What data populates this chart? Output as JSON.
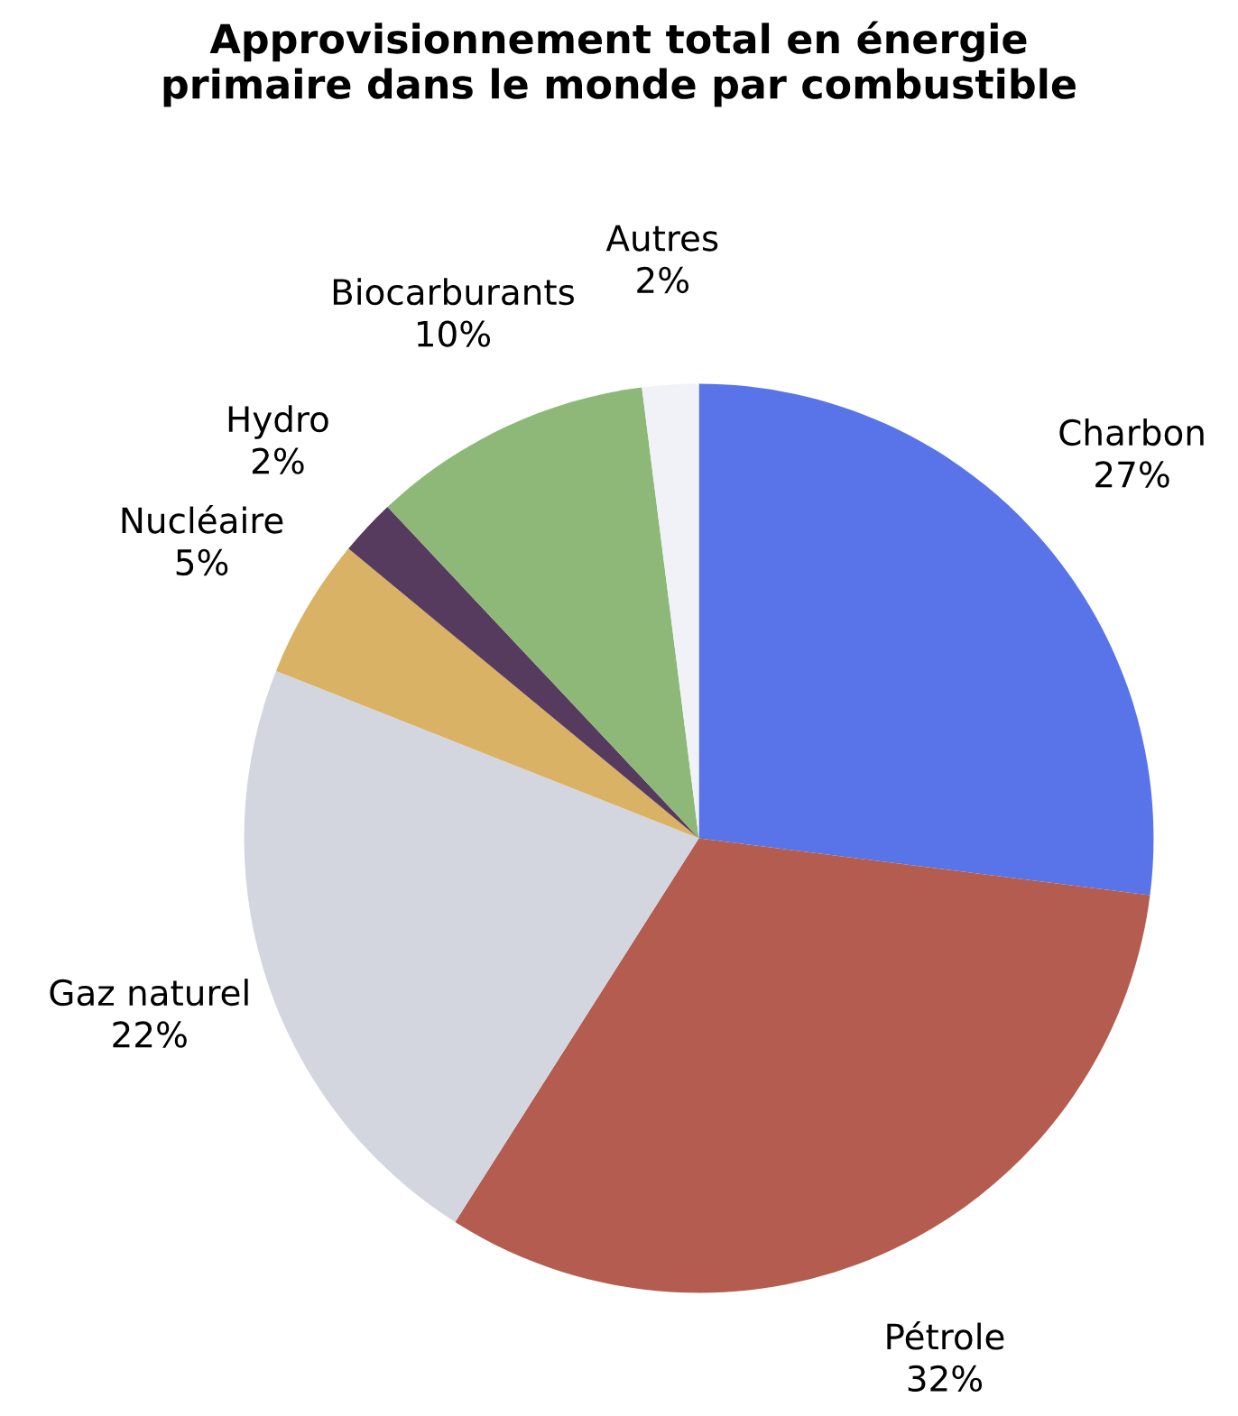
{
  "chart_data": {
    "type": "pie",
    "title": "Approvisionnement total en énergie\nprimaire dans le monde par combustible",
    "categories": [
      "Charbon",
      "Pétrole",
      "Gaz naturel",
      "Nucléaire",
      "Hydro",
      "Biocarburants",
      "Autres"
    ],
    "values": [
      27,
      32,
      22,
      5,
      2,
      10,
      2
    ],
    "value_labels": [
      "27%",
      "32%",
      "22%",
      "5%",
      "2%",
      "10%",
      "2%"
    ],
    "colors": [
      "#5874e8",
      "#b35c4f",
      "#d3d6de",
      "#d9b265",
      "#563b5e",
      "#8db877",
      "#f0f2f7"
    ],
    "legend": false
  }
}
